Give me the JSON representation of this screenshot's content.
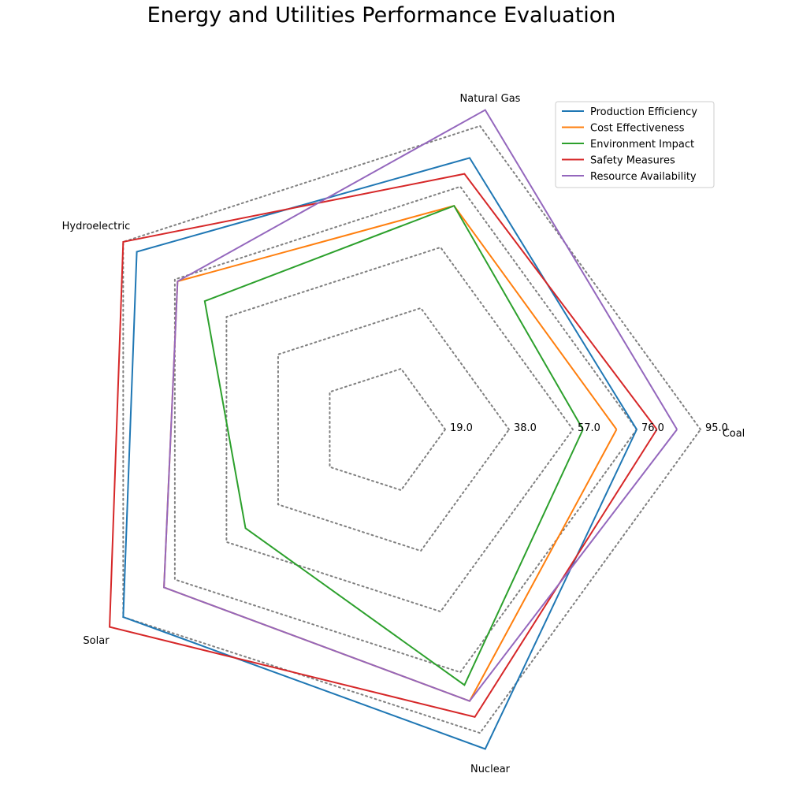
{
  "chart_data": {
    "type": "radar",
    "title": "Energy and Utilities Performance Evaluation",
    "categories": [
      "Coal",
      "Natural Gas",
      "Hydroelectric",
      "Solar",
      "Nuclear"
    ],
    "grid_levels": [
      19.0,
      38.0,
      57.0,
      76.0,
      95.0
    ],
    "grid_labels": [
      "19.0",
      "38.0",
      "57.0",
      "76.0",
      "95.0"
    ],
    "rmax": 95,
    "legend_position": "top-right",
    "series": [
      {
        "name": " Production Efficiency",
        "color": "#1f77b4",
        "values": [
          76,
          85,
          90,
          95,
          100
        ]
      },
      {
        "name": " Cost Effectiveness",
        "color": "#ff7f0e",
        "values": [
          70,
          70,
          75,
          80,
          85
        ]
      },
      {
        "name": " Environment Impact",
        "color": "#2ca02c",
        "values": [
          60,
          70,
          65,
          50,
          80
        ]
      },
      {
        "name": " Safety Measures",
        "color": "#d62728",
        "values": [
          82,
          80,
          95,
          100,
          90
        ]
      },
      {
        "name": " Resource Availability",
        "color": "#9467bd",
        "values": [
          88,
          100,
          75,
          80,
          85
        ]
      }
    ]
  }
}
